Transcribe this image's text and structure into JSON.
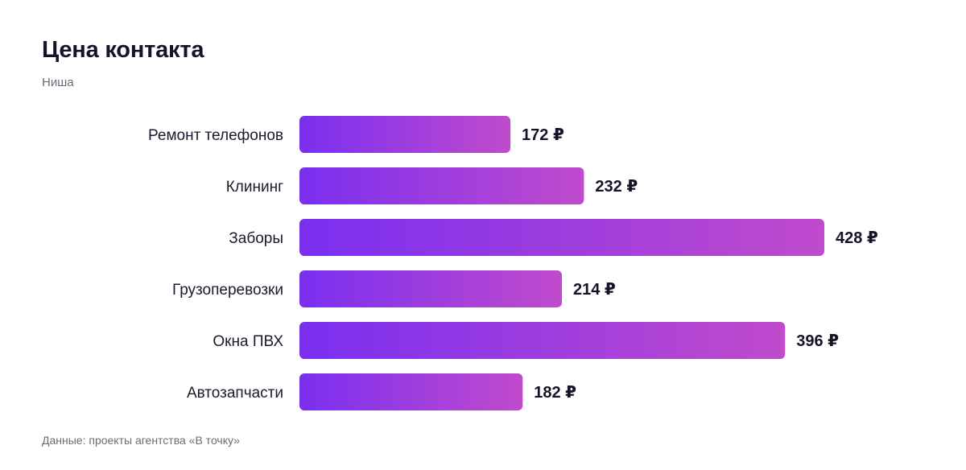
{
  "header": {
    "title": "Цена контакта",
    "subtitle": "Ниша"
  },
  "footer": {
    "source": "Данные: проекты агентства «В точку»"
  },
  "colors": {
    "bar_start": "#7a2ff0",
    "bar_end": "#c04bcc",
    "label": "#1a1a2e",
    "muted": "#6b6b78"
  },
  "chart_data": {
    "type": "bar",
    "orientation": "horizontal",
    "title": "Цена контакта",
    "subtitle": "Ниша",
    "categories": [
      "Ремонт телефонов",
      "Клининг",
      "Заборы",
      "Грузоперевозки",
      "Окна ПВХ",
      "Автозапчасти"
    ],
    "values": [
      172,
      232,
      428,
      214,
      396,
      182
    ],
    "value_labels": [
      "172 ₽",
      "232 ₽",
      "428 ₽",
      "214 ₽",
      "396 ₽",
      "182 ₽"
    ],
    "xlim": [
      0,
      428
    ],
    "grid": false,
    "legend": "none"
  }
}
